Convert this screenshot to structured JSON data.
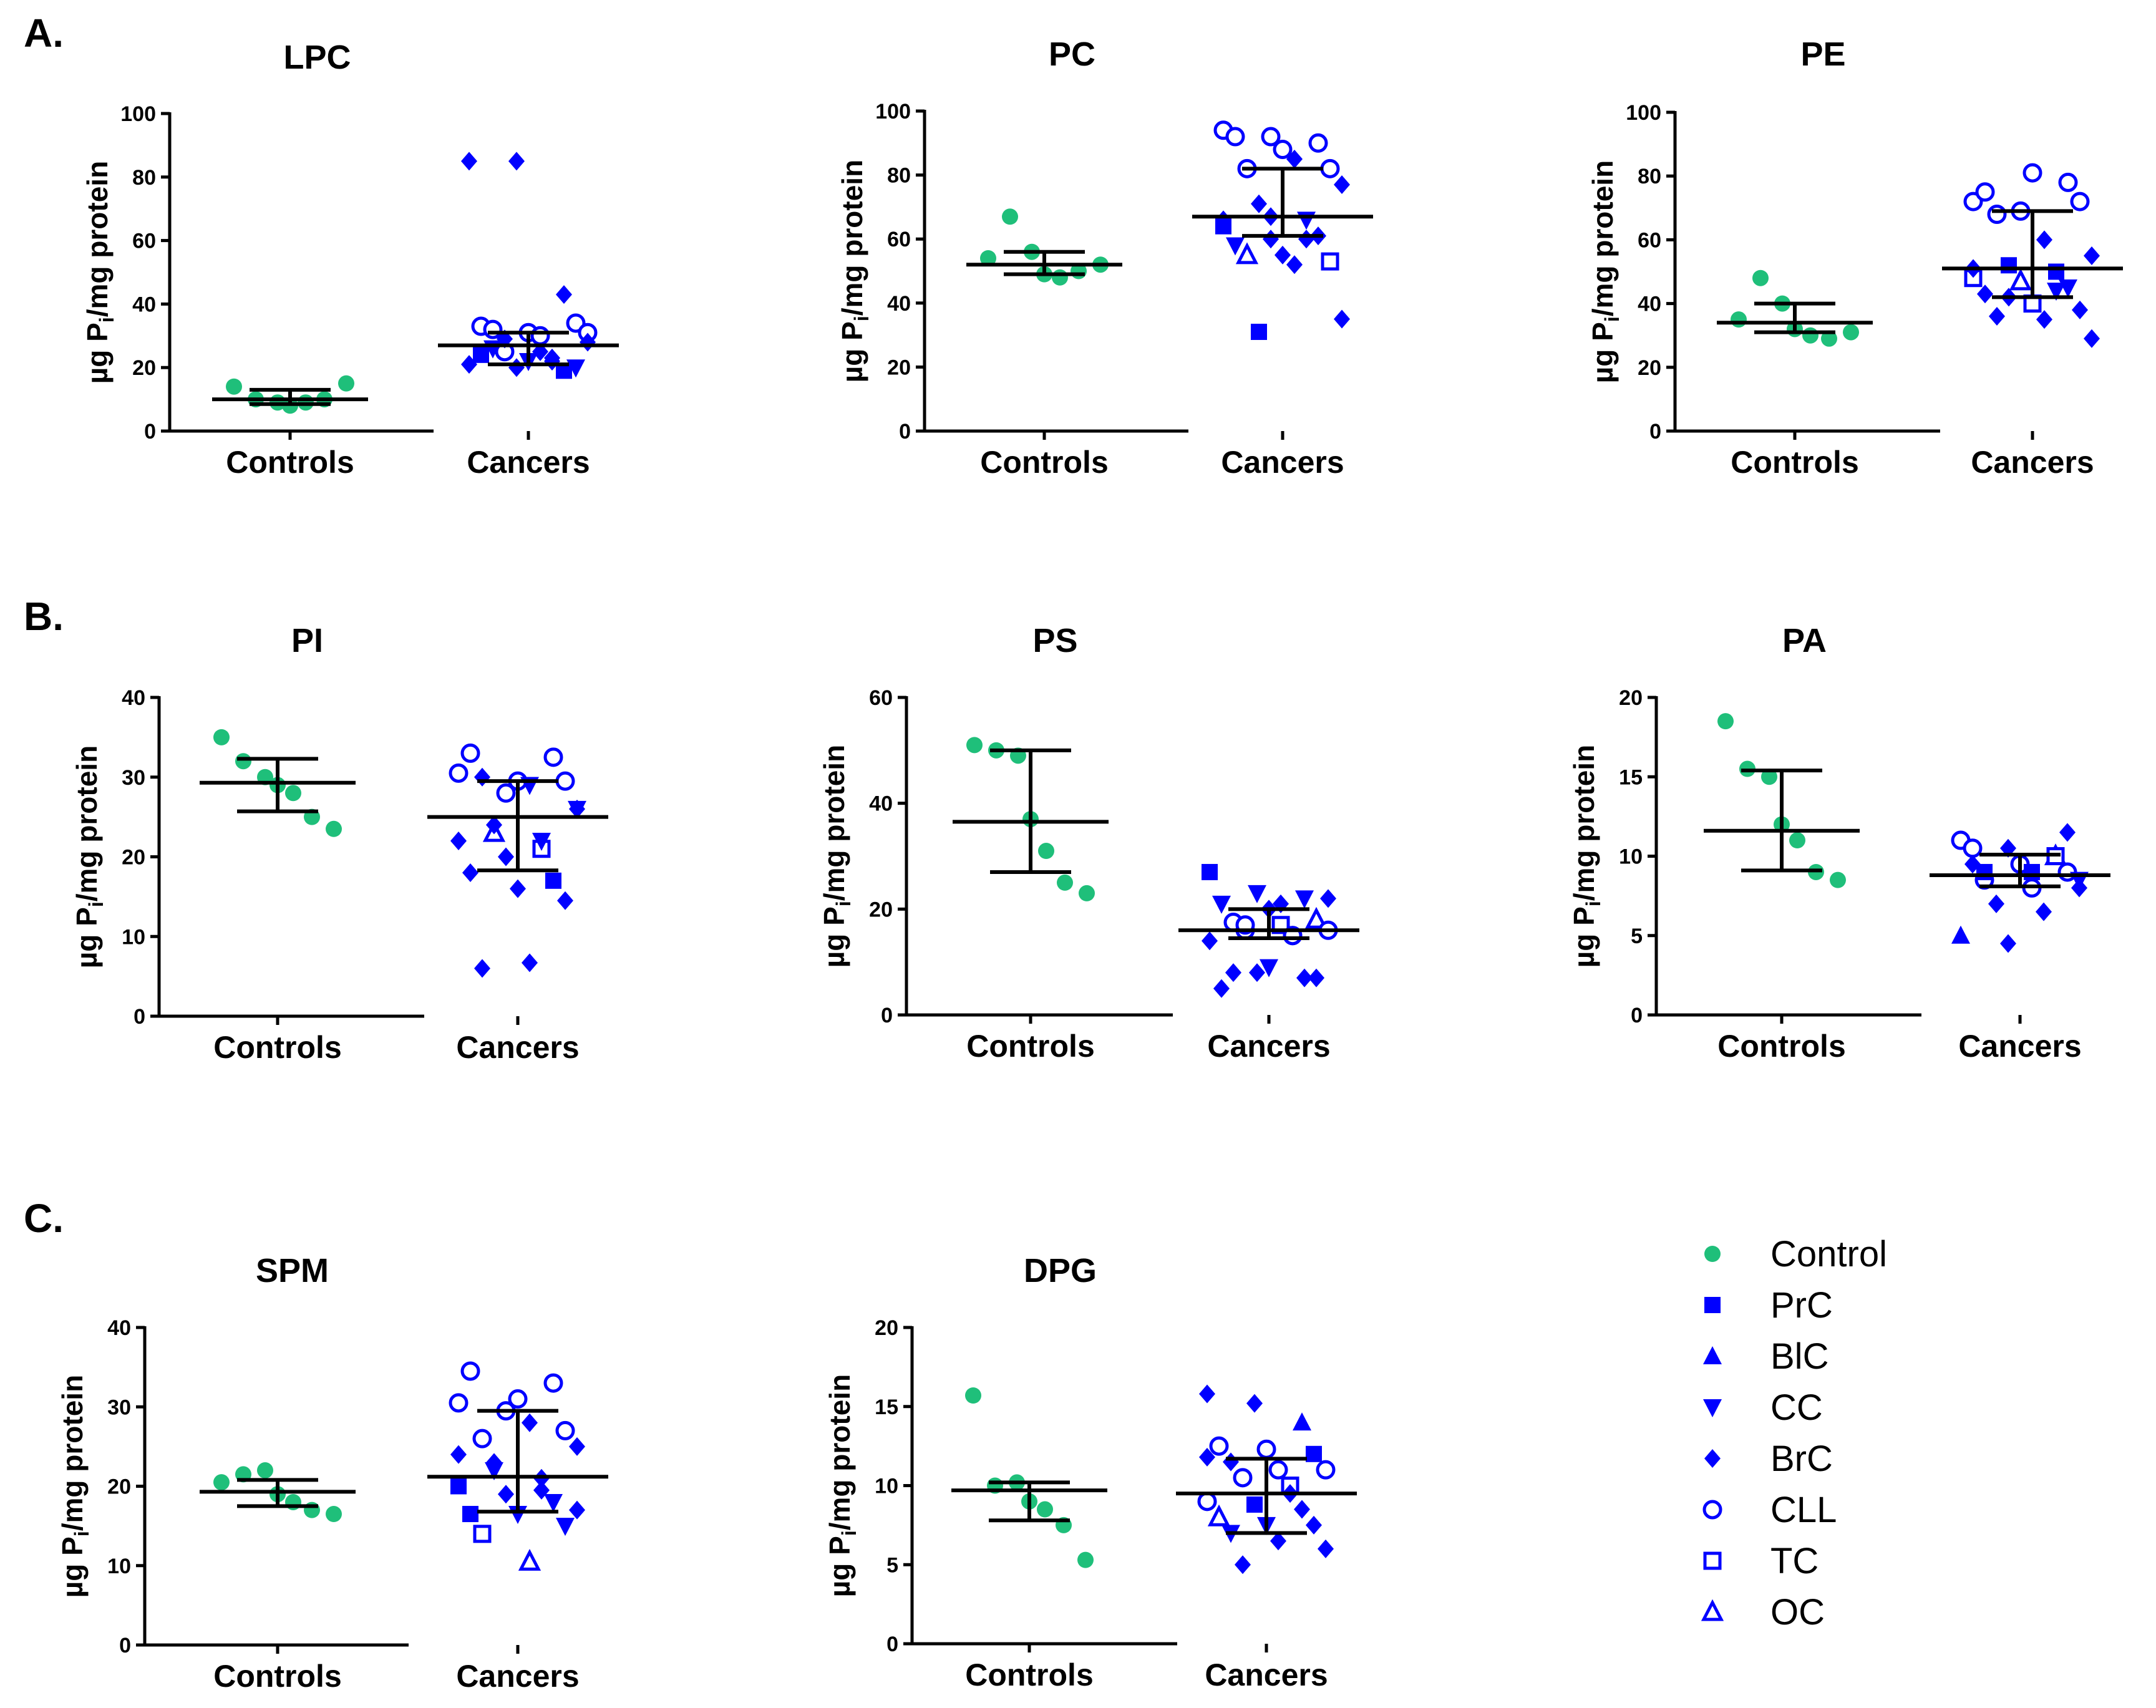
{
  "colors": {
    "control": "#1fbf7a",
    "cancer": "#0000ff",
    "axis": "#000000"
  },
  "legend": {
    "items": [
      {
        "label": "Control",
        "marker": "filled-circle"
      },
      {
        "label": "PrC",
        "marker": "filled-square"
      },
      {
        "label": "BlC",
        "marker": "filled-triangle-up"
      },
      {
        "label": "CC",
        "marker": "filled-triangle-down"
      },
      {
        "label": "BrC",
        "marker": "filled-diamond"
      },
      {
        "label": "CLL",
        "marker": "open-circle"
      },
      {
        "label": "TC",
        "marker": "open-square"
      },
      {
        "label": "OC",
        "marker": "open-triangle-up"
      }
    ]
  },
  "sections": [
    "A.",
    "B.",
    "C."
  ],
  "chart_data": [
    {
      "type": "scatter",
      "title": "LPC",
      "ylabel": "µg Pi/mg protein",
      "ylabel_main": "µg P",
      "ylabel_sub": "i",
      "ylabel_rest": "/mg protein",
      "categories": [
        "Controls",
        "Cancers"
      ],
      "ylim": [
        0,
        100
      ],
      "yticks": [
        0,
        20,
        40,
        60,
        80,
        100
      ],
      "controls": {
        "points": [
          14,
          10,
          9,
          8,
          9,
          10,
          15
        ],
        "mean": 10,
        "sd_low": 8.5,
        "sd_high": 13
      },
      "cancers": {
        "points": [
          {
            "v": 85,
            "m": "BrC"
          },
          {
            "v": 85,
            "m": "BrC"
          },
          {
            "v": 43,
            "m": "BrC"
          },
          {
            "v": 33,
            "m": "CLL"
          },
          {
            "v": 31,
            "m": "CLL"
          },
          {
            "v": 34,
            "m": "CLL"
          },
          {
            "v": 32,
            "m": "CLL"
          },
          {
            "v": 30,
            "m": "CLL"
          },
          {
            "v": 31,
            "m": "CLL"
          },
          {
            "v": 25,
            "m": "CLL"
          },
          {
            "v": 23,
            "m": "BrC"
          },
          {
            "v": 21,
            "m": "BrC"
          },
          {
            "v": 20,
            "m": "BrC"
          },
          {
            "v": 19,
            "m": "PrC"
          },
          {
            "v": 24,
            "m": "PrC"
          },
          {
            "v": 22,
            "m": "CC"
          },
          {
            "v": 20,
            "m": "CC"
          },
          {
            "v": 26,
            "m": "CC"
          },
          {
            "v": 25,
            "m": "BrC"
          },
          {
            "v": 28,
            "m": "BrC"
          },
          {
            "v": 29,
            "m": "BrC"
          },
          {
            "v": 22,
            "m": "BrC"
          }
        ],
        "mean": 27,
        "sd_low": 21,
        "sd_high": 31
      }
    },
    {
      "type": "scatter",
      "title": "PC",
      "ylabel": "µg Pi/mg protein",
      "ylabel_main": "µg P",
      "ylabel_sub": "i",
      "ylabel_rest": "/mg protein",
      "categories": [
        "Controls",
        "Cancers"
      ],
      "ylim": [
        0,
        100
      ],
      "yticks": [
        0,
        20,
        40,
        60,
        80,
        100
      ],
      "controls": {
        "points": [
          54,
          67,
          56,
          49,
          48,
          50,
          52
        ],
        "mean": 52,
        "sd_low": 49,
        "sd_high": 56
      },
      "cancers": {
        "points": [
          {
            "v": 94,
            "m": "CLL"
          },
          {
            "v": 92,
            "m": "CLL"
          },
          {
            "v": 90,
            "m": "CLL"
          },
          {
            "v": 92,
            "m": "CLL"
          },
          {
            "v": 88,
            "m": "CLL"
          },
          {
            "v": 82,
            "m": "CLL"
          },
          {
            "v": 82,
            "m": "CLL"
          },
          {
            "v": 85,
            "m": "BrC"
          },
          {
            "v": 77,
            "m": "BrC"
          },
          {
            "v": 71,
            "m": "BrC"
          },
          {
            "v": 66,
            "m": "CC"
          },
          {
            "v": 64,
            "m": "PrC"
          },
          {
            "v": 60,
            "m": "BrC"
          },
          {
            "v": 61,
            "m": "BrC"
          },
          {
            "v": 58,
            "m": "CC"
          },
          {
            "v": 55,
            "m": "BrC"
          },
          {
            "v": 53,
            "m": "TC"
          },
          {
            "v": 55,
            "m": "OC"
          },
          {
            "v": 52,
            "m": "BrC"
          },
          {
            "v": 35,
            "m": "BrC"
          },
          {
            "v": 31,
            "m": "PrC"
          },
          {
            "v": 60,
            "m": "BrC"
          },
          {
            "v": 66,
            "m": "BrC"
          },
          {
            "v": 67,
            "m": "BrC"
          }
        ],
        "mean": 67,
        "sd_low": 61,
        "sd_high": 82
      }
    },
    {
      "type": "scatter",
      "title": "PE",
      "ylabel": "µg Pi/mg protein",
      "ylabel_main": "µg P",
      "ylabel_sub": "i",
      "ylabel_rest": "/mg protein",
      "categories": [
        "Controls",
        "Cancers"
      ],
      "ylim": [
        0,
        100
      ],
      "yticks": [
        0,
        20,
        40,
        60,
        80,
        100
      ],
      "controls": {
        "points": [
          35,
          48,
          40,
          32,
          30,
          29,
          31
        ],
        "mean": 34,
        "sd_low": 31,
        "sd_high": 40
      },
      "cancers": {
        "points": [
          {
            "v": 72,
            "m": "CLL"
          },
          {
            "v": 69,
            "m": "CLL"
          },
          {
            "v": 78,
            "m": "CLL"
          },
          {
            "v": 75,
            "m": "CLL"
          },
          {
            "v": 81,
            "m": "CLL"
          },
          {
            "v": 72,
            "m": "CLL"
          },
          {
            "v": 68,
            "m": "CLL"
          },
          {
            "v": 60,
            "m": "BrC"
          },
          {
            "v": 55,
            "m": "BrC"
          },
          {
            "v": 52,
            "m": "PrC"
          },
          {
            "v": 50,
            "m": "PrC"
          },
          {
            "v": 48,
            "m": "TC"
          },
          {
            "v": 47,
            "m": "OC"
          },
          {
            "v": 45,
            "m": "CC"
          },
          {
            "v": 43,
            "m": "BrC"
          },
          {
            "v": 40,
            "m": "TC"
          },
          {
            "v": 38,
            "m": "BrC"
          },
          {
            "v": 36,
            "m": "BrC"
          },
          {
            "v": 35,
            "m": "BrC"
          },
          {
            "v": 29,
            "m": "BrC"
          },
          {
            "v": 42,
            "m": "BrC"
          },
          {
            "v": 44,
            "m": "CC"
          },
          {
            "v": 51,
            "m": "BrC"
          }
        ],
        "mean": 51,
        "sd_low": 42,
        "sd_high": 69
      }
    },
    {
      "type": "scatter",
      "title": "PI",
      "ylabel": "µg Pi/mg protein",
      "ylabel_main": "µg P",
      "ylabel_sub": "i",
      "ylabel_rest": "/mg protein",
      "categories": [
        "Controls",
        "Cancers"
      ],
      "ylim": [
        0,
        40
      ],
      "yticks": [
        0,
        10,
        20,
        30,
        40
      ],
      "controls": {
        "points": [
          35,
          32,
          30,
          29,
          28,
          25,
          23.5
        ],
        "mean": 29.3,
        "sd_low": 25.7,
        "sd_high": 32.3
      },
      "cancers": {
        "points": [
          {
            "v": 30.5,
            "m": "CLL"
          },
          {
            "v": 28,
            "m": "CLL"
          },
          {
            "v": 32.5,
            "m": "CLL"
          },
          {
            "v": 33,
            "m": "CLL"
          },
          {
            "v": 29.5,
            "m": "CLL"
          },
          {
            "v": 29.5,
            "m": "CLL"
          },
          {
            "v": 30,
            "m": "BrC"
          },
          {
            "v": 29,
            "m": "CC"
          },
          {
            "v": 26,
            "m": "BrC"
          },
          {
            "v": 23,
            "m": "OC"
          },
          {
            "v": 21,
            "m": "TC"
          },
          {
            "v": 22,
            "m": "BrC"
          },
          {
            "v": 20,
            "m": "BrC"
          },
          {
            "v": 17,
            "m": "PrC"
          },
          {
            "v": 18,
            "m": "BrC"
          },
          {
            "v": 16,
            "m": "BrC"
          },
          {
            "v": 14.5,
            "m": "BrC"
          },
          {
            "v": 6,
            "m": "BrC"
          },
          {
            "v": 6.7,
            "m": "BrC"
          },
          {
            "v": 26,
            "m": "CC"
          },
          {
            "v": 24,
            "m": "BrC"
          },
          {
            "v": 22,
            "m": "CC"
          }
        ],
        "mean": 25,
        "sd_low": 18.3,
        "sd_high": 29.5
      }
    },
    {
      "type": "scatter",
      "title": "PS",
      "ylabel": "µg Pi/mg protein",
      "ylabel_main": "µg P",
      "ylabel_sub": "i",
      "ylabel_rest": "/mg protein",
      "categories": [
        "Controls",
        "Cancers"
      ],
      "ylim": [
        0,
        60
      ],
      "yticks": [
        0,
        20,
        40,
        60
      ],
      "controls": {
        "points": [
          51,
          50,
          49,
          37,
          31,
          25,
          23
        ],
        "mean": 36.5,
        "sd_low": 27,
        "sd_high": 50
      },
      "cancers": {
        "points": [
          {
            "v": 27,
            "m": "PrC"
          },
          {
            "v": 23,
            "m": "CC"
          },
          {
            "v": 22,
            "m": "CC"
          },
          {
            "v": 21,
            "m": "CC"
          },
          {
            "v": 20,
            "m": "BrC"
          },
          {
            "v": 18,
            "m": "OC"
          },
          {
            "v": 17.5,
            "m": "CLL"
          },
          {
            "v": 17,
            "m": "TC"
          },
          {
            "v": 16,
            "m": "CLL"
          },
          {
            "v": 16,
            "m": "CLL"
          },
          {
            "v": 15,
            "m": "CLL"
          },
          {
            "v": 14,
            "m": "BrC"
          },
          {
            "v": 8,
            "m": "BrC"
          },
          {
            "v": 7,
            "m": "BrC"
          },
          {
            "v": 5,
            "m": "BrC"
          },
          {
            "v": 9,
            "m": "CC"
          },
          {
            "v": 7,
            "m": "BrC"
          },
          {
            "v": 8,
            "m": "BrC"
          },
          {
            "v": 21,
            "m": "BrC"
          },
          {
            "v": 22,
            "m": "BrC"
          },
          {
            "v": 17,
            "m": "CLL"
          },
          {
            "v": 15,
            "m": "CLL"
          }
        ],
        "mean": 16,
        "sd_low": 14.5,
        "sd_high": 20
      }
    },
    {
      "type": "scatter",
      "title": "PA",
      "ylabel": "µg Pi/mg protein",
      "ylabel_main": "µg P",
      "ylabel_sub": "i",
      "ylabel_rest": "/mg protein",
      "categories": [
        "Controls",
        "Cancers"
      ],
      "ylim": [
        0,
        20
      ],
      "yticks": [
        0,
        5,
        10,
        15,
        20
      ],
      "controls": {
        "points": [
          18.5,
          15.5,
          15,
          12,
          11,
          9,
          8.5
        ],
        "mean": 11.6,
        "sd_low": 9.1,
        "sd_high": 15.4
      },
      "cancers": {
        "points": [
          {
            "v": 11,
            "m": "CLL"
          },
          {
            "v": 10.5,
            "m": "BrC"
          },
          {
            "v": 10,
            "m": "OC"
          },
          {
            "v": 9.5,
            "m": "BrC"
          },
          {
            "v": 9.5,
            "m": "BrC"
          },
          {
            "v": 9,
            "m": "CLL"
          },
          {
            "v": 8.5,
            "m": "CLL"
          },
          {
            "v": 8,
            "m": "CLL"
          },
          {
            "v": 8,
            "m": "BrC"
          },
          {
            "v": 7,
            "m": "BrC"
          },
          {
            "v": 6.5,
            "m": "BrC"
          },
          {
            "v": 5,
            "m": "BlC"
          },
          {
            "v": 4.5,
            "m": "BrC"
          },
          {
            "v": 10,
            "m": "TC"
          },
          {
            "v": 10.5,
            "m": "CLL"
          },
          {
            "v": 9.5,
            "m": "CLL"
          },
          {
            "v": 11.5,
            "m": "BrC"
          },
          {
            "v": 9,
            "m": "PrC"
          },
          {
            "v": 9,
            "m": "PrC"
          },
          {
            "v": 8.5,
            "m": "CC"
          }
        ],
        "mean": 8.8,
        "sd_low": 8.1,
        "sd_high": 10.1
      }
    },
    {
      "type": "scatter",
      "title": "SPM",
      "ylabel": "µg Pi/mg protein",
      "ylabel_main": "µg P",
      "ylabel_sub": "i",
      "ylabel_rest": "/mg protein",
      "categories": [
        "Controls",
        "Cancers"
      ],
      "ylim": [
        0,
        40
      ],
      "yticks": [
        0,
        10,
        20,
        30,
        40
      ],
      "controls": {
        "points": [
          20.5,
          21.5,
          22,
          19,
          18,
          17,
          16.5
        ],
        "mean": 19.3,
        "sd_low": 17.5,
        "sd_high": 20.8
      },
      "cancers": {
        "points": [
          {
            "v": 30.5,
            "m": "CLL"
          },
          {
            "v": 29.5,
            "m": "CLL"
          },
          {
            "v": 33,
            "m": "CLL"
          },
          {
            "v": 34.5,
            "m": "CLL"
          },
          {
            "v": 31,
            "m": "CLL"
          },
          {
            "v": 27,
            "m": "CLL"
          },
          {
            "v": 26,
            "m": "CLL"
          },
          {
            "v": 28,
            "m": "BrC"
          },
          {
            "v": 25,
            "m": "BrC"
          },
          {
            "v": 23,
            "m": "BrC"
          },
          {
            "v": 21,
            "m": "BrC"
          },
          {
            "v": 20,
            "m": "PrC"
          },
          {
            "v": 19,
            "m": "BrC"
          },
          {
            "v": 18,
            "m": "CC"
          },
          {
            "v": 16.5,
            "m": "PrC"
          },
          {
            "v": 16.5,
            "m": "CC"
          },
          {
            "v": 15,
            "m": "CC"
          },
          {
            "v": 14,
            "m": "TC"
          },
          {
            "v": 10.5,
            "m": "OC"
          },
          {
            "v": 17,
            "m": "BrC"
          },
          {
            "v": 22,
            "m": "CC"
          },
          {
            "v": 19.5,
            "m": "BrC"
          },
          {
            "v": 24,
            "m": "BrC"
          }
        ],
        "mean": 21.2,
        "sd_low": 16.8,
        "sd_high": 29.5
      }
    },
    {
      "type": "scatter",
      "title": "DPG",
      "ylabel": "µg Pi/mg protein",
      "ylabel_main": "µg P",
      "ylabel_sub": "i",
      "ylabel_rest": "/mg protein",
      "categories": [
        "Controls",
        "Cancers"
      ],
      "ylim": [
        0,
        20
      ],
      "yticks": [
        0,
        5,
        10,
        15,
        20
      ],
      "controls": {
        "points": [
          15.7,
          10,
          10.2,
          9,
          8.5,
          7.5,
          5.3
        ],
        "mean": 9.7,
        "sd_low": 7.8,
        "sd_high": 10.2
      },
      "cancers": {
        "points": [
          {
            "v": 15.8,
            "m": "BrC"
          },
          {
            "v": 15.2,
            "m": "BrC"
          },
          {
            "v": 14,
            "m": "BlC"
          },
          {
            "v": 12.5,
            "m": "CLL"
          },
          {
            "v": 12.3,
            "m": "CLL"
          },
          {
            "v": 12,
            "m": "PrC"
          },
          {
            "v": 11.5,
            "m": "BrC"
          },
          {
            "v": 11,
            "m": "CLL"
          },
          {
            "v": 11,
            "m": "CLL"
          },
          {
            "v": 10.5,
            "m": "CLL"
          },
          {
            "v": 10,
            "m": "TC"
          },
          {
            "v": 9,
            "m": "CLL"
          },
          {
            "v": 8.8,
            "m": "PrC"
          },
          {
            "v": 8.5,
            "m": "BrC"
          },
          {
            "v": 8,
            "m": "OC"
          },
          {
            "v": 7.5,
            "m": "CC"
          },
          {
            "v": 7.5,
            "m": "BrC"
          },
          {
            "v": 7,
            "m": "CC"
          },
          {
            "v": 6.5,
            "m": "BrC"
          },
          {
            "v": 6,
            "m": "BrC"
          },
          {
            "v": 5,
            "m": "BrC"
          },
          {
            "v": 9.5,
            "m": "BrC"
          },
          {
            "v": 11.8,
            "m": "BrC"
          }
        ],
        "mean": 9.5,
        "sd_low": 7,
        "sd_high": 11.7
      }
    }
  ]
}
